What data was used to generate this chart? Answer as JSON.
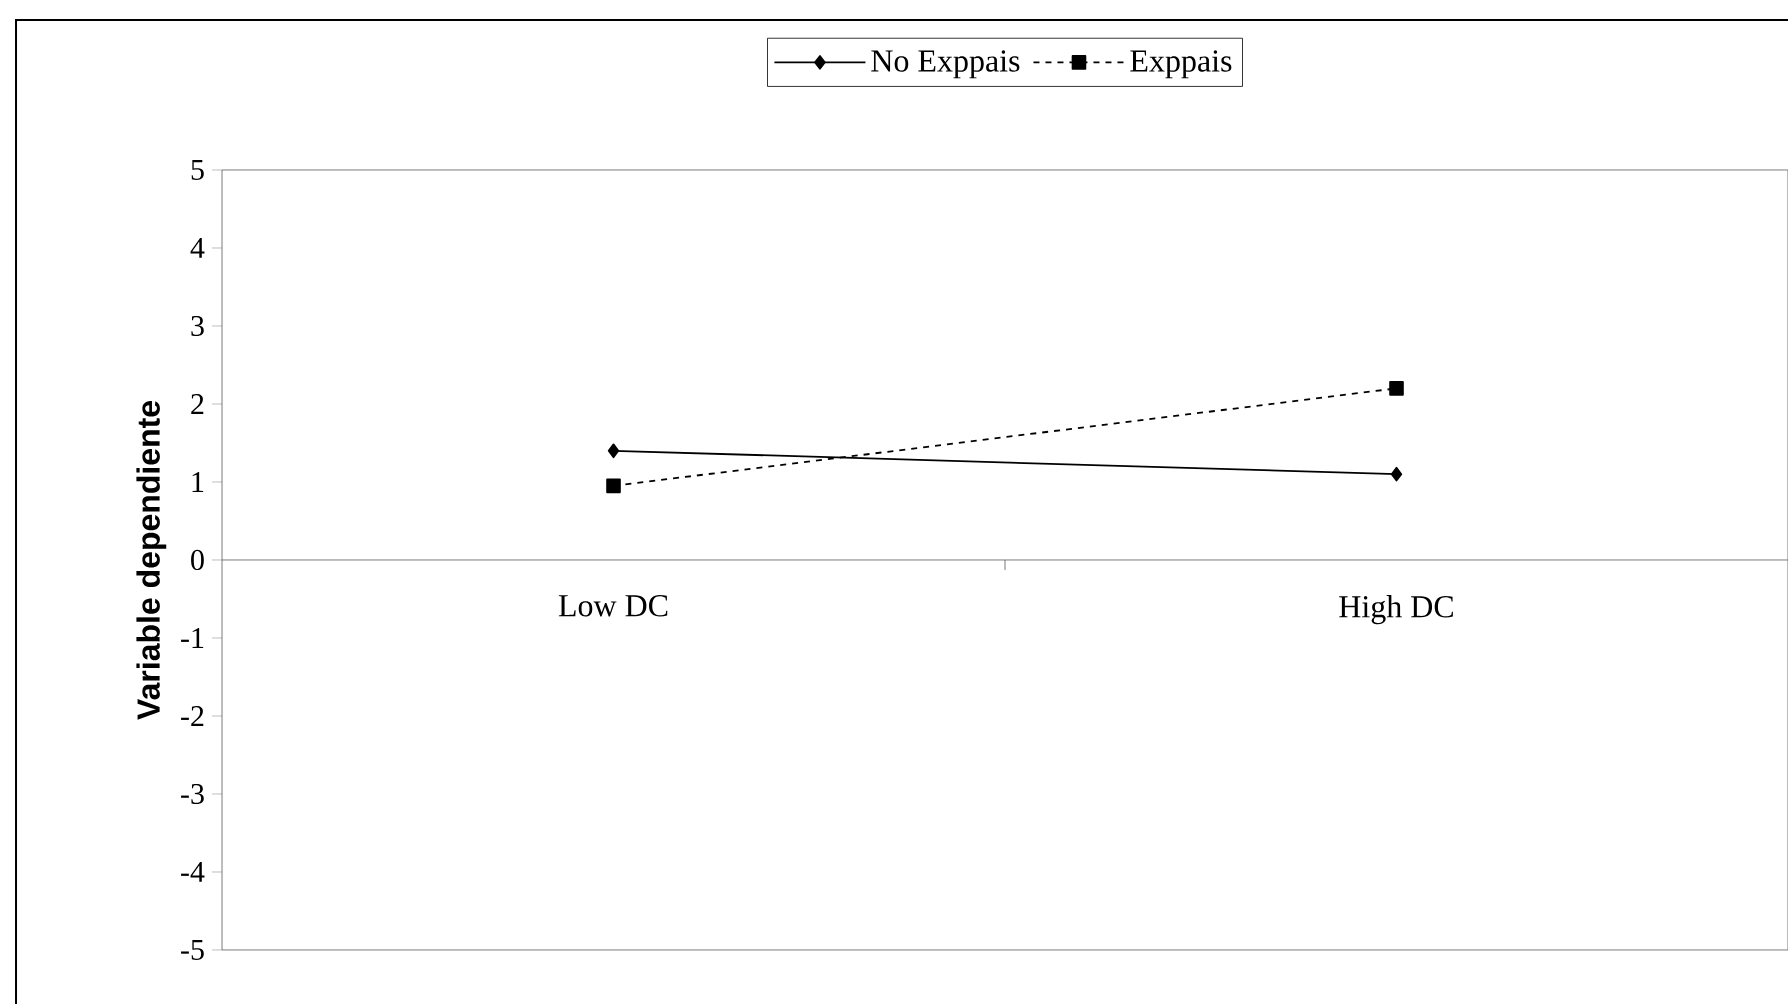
{
  "chart_data": {
    "type": "line",
    "ylabel": "Variable dependiente",
    "categories": [
      "Low DC",
      "High DC"
    ],
    "series": [
      {
        "name": "No Exppais",
        "color": "#000000",
        "values": [
          1.4,
          1.1
        ],
        "marker": "diamond",
        "line_style": "solid"
      },
      {
        "name": "Exppais",
        "color": "#000000",
        "values": [
          0.95,
          2.2
        ],
        "marker": "square",
        "line_style": "dashed"
      }
    ],
    "ylim": [
      -5,
      5
    ],
    "yticks": [
      -5,
      -4,
      -3,
      -2,
      -1,
      0,
      1,
      2,
      3,
      4,
      5
    ],
    "grid": false,
    "legend": "top"
  }
}
